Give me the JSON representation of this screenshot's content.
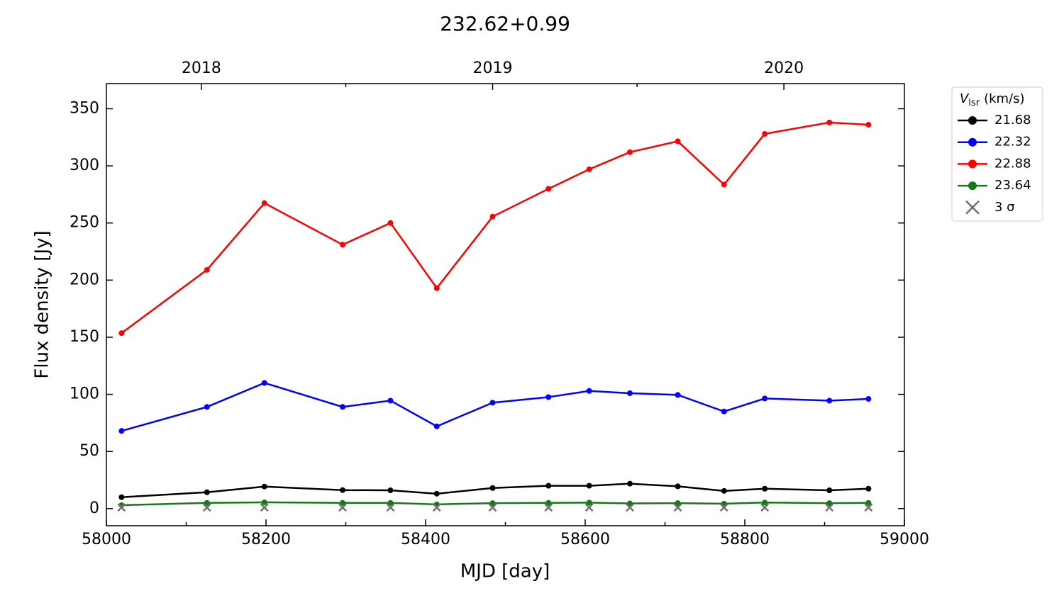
{
  "chart_data": {
    "type": "line",
    "title": "232.62+0.99",
    "x_label": "MJD [day]",
    "y_label": "Flux density [Jy]",
    "xlim": [
      58000,
      59000
    ],
    "ylim": [
      -15,
      372
    ],
    "xticks": [
      58000,
      58200,
      58400,
      58600,
      58800,
      59000
    ],
    "xminor_ticks": [
      58100,
      58300,
      58500,
      58700,
      58900
    ],
    "yticks": [
      0,
      50,
      100,
      150,
      200,
      250,
      300,
      350
    ],
    "top_ticks": [
      {
        "value": 58119,
        "label": "2018"
      },
      {
        "value": 58484,
        "label": "2019"
      },
      {
        "value": 58849,
        "label": "2020"
      }
    ],
    "top_minor_ticks": [
      58300,
      58665
    ],
    "legend_title": {
      "symbol": "V",
      "subscript": "lsr",
      "unit": "(km/s)"
    },
    "legend_position": "outside upper right",
    "x": [
      58019,
      58126,
      58198,
      58296,
      58356,
      58414,
      58484,
      58554,
      58605,
      58656,
      58716,
      58774,
      58825,
      58906,
      58955
    ],
    "series": [
      {
        "name": "21.68",
        "color": "#000000",
        "marker": "o",
        "values": [
          10,
          14.3,
          19.3,
          16.2,
          16,
          13,
          18,
          20,
          20,
          21.8,
          19.5,
          15.5,
          17.4,
          16,
          17.4
        ]
      },
      {
        "name": "22.32",
        "color": "#0000ff",
        "marker": "o",
        "values": [
          68,
          89,
          110,
          89,
          94.5,
          72,
          92.7,
          97.6,
          103,
          101,
          99.5,
          85,
          96.4,
          94.5,
          96
        ]
      },
      {
        "name": "22.88",
        "color": "#ff0000",
        "marker": "o",
        "values": [
          153.6,
          209,
          267.4,
          231,
          250,
          193,
          255.6,
          279.9,
          297,
          312,
          321.5,
          283.6,
          328,
          338,
          336
        ]
      },
      {
        "name": "23.64",
        "color": "#157a15",
        "marker": "o",
        "values": [
          3,
          5,
          5.5,
          5,
          5,
          3.7,
          4.8,
          5,
          5.2,
          4.5,
          4.8,
          4.3,
          5.3,
          4.8,
          5
        ]
      },
      {
        "name": "3 σ",
        "color": "#707070",
        "marker": "x",
        "values": [
          1,
          1,
          1,
          1,
          1,
          1,
          1,
          1,
          1,
          1,
          1,
          1,
          1,
          1,
          1
        ]
      }
    ]
  }
}
